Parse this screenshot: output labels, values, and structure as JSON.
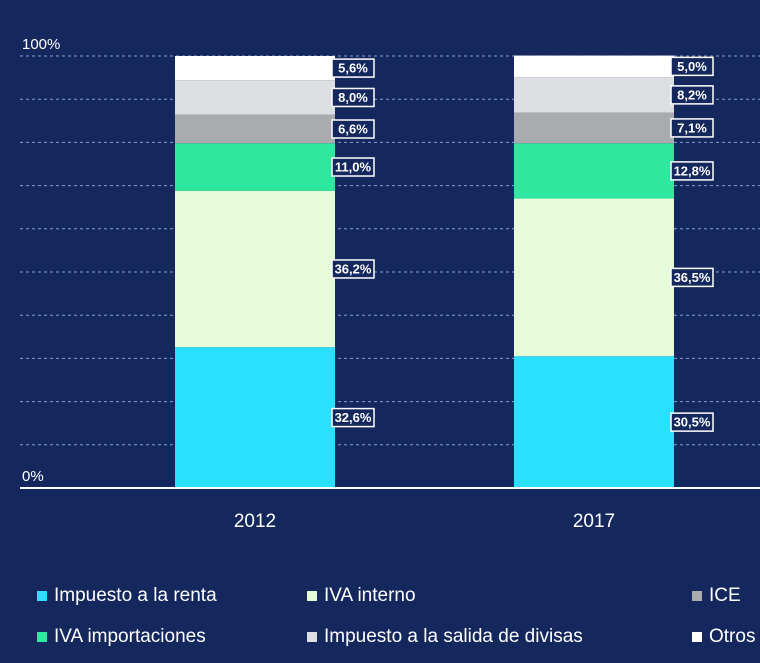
{
  "chart_data": {
    "type": "stacked_bar",
    "categories": [
      "2012",
      "2017"
    ],
    "series": [
      {
        "name": "Impuesto a la renta",
        "color": "#29e0ff",
        "values": [
          32.6,
          30.5
        ],
        "value_labels": [
          "32,6%",
          "30,5%"
        ]
      },
      {
        "name": "IVA interno",
        "color": "#e6fbd8",
        "values": [
          36.2,
          36.5
        ],
        "value_labels": [
          "36,2%",
          "36,5%"
        ]
      },
      {
        "name": "IVA importaciones",
        "color": "#2ee8a0",
        "values": [
          11.0,
          12.8
        ],
        "value_labels": [
          "11,0%",
          "12,8%"
        ]
      },
      {
        "name": "ICE",
        "color": "#a9abaf",
        "values": [
          6.6,
          7.1
        ],
        "value_labels": [
          "6,6%",
          "7,1%"
        ]
      },
      {
        "name": "Impuesto a la salida de divisas",
        "color": "#dcdee2",
        "values": [
          8.0,
          8.2
        ],
        "value_labels": [
          "8,0%",
          "8,2%"
        ]
      },
      {
        "name": "Otros",
        "color": "#ffffff",
        "values": [
          5.6,
          5.0
        ],
        "value_labels": [
          "5,6%",
          "5,0%"
        ]
      }
    ],
    "ylim": [
      0,
      100
    ],
    "yticks": [
      {
        "value": 0,
        "label": "0%"
      },
      {
        "value": 100,
        "label": "100%"
      }
    ],
    "ygrid": [
      10,
      20,
      30,
      40,
      50,
      60,
      70,
      80,
      90,
      100
    ],
    "grid": true
  }
}
